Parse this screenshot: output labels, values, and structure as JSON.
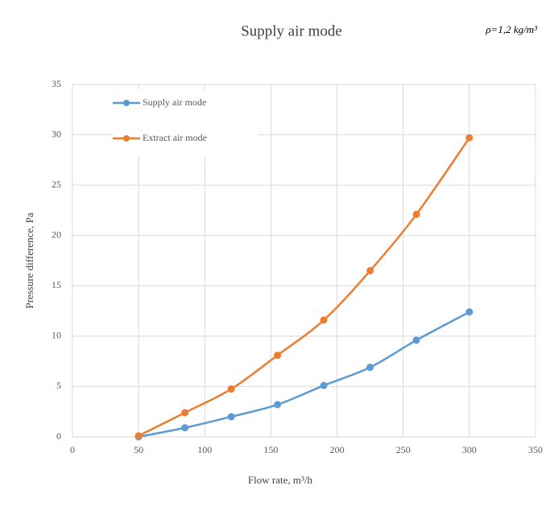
{
  "chart_data": {
    "type": "line",
    "title": "Supply air mode",
    "annotation": "ρ=1,2 kg/m³",
    "x_label": "Flow rate, m³/h",
    "y_label": "Pressure difference, Pa",
    "x": [
      50,
      85,
      120,
      155,
      190,
      225,
      260,
      300
    ],
    "series": [
      {
        "name": "Supply air mode",
        "color": "#5b9bd5",
        "values": [
          0,
          0.9,
          2.0,
          3.2,
          5.1,
          6.9,
          9.6,
          12.4
        ]
      },
      {
        "name": "Extract air mode",
        "color": "#ed7d31",
        "values": [
          0.1,
          2.4,
          4.75,
          8.1,
          11.6,
          16.5,
          22.1,
          29.7
        ]
      }
    ],
    "xlim": [
      0,
      350
    ],
    "xticks": [
      0,
      50,
      100,
      150,
      200,
      250,
      300,
      350
    ],
    "ylim": [
      0,
      35
    ],
    "yticks": [
      0,
      5,
      10,
      15,
      20,
      25,
      30,
      35
    ],
    "grid": true,
    "legend": "upper left"
  }
}
